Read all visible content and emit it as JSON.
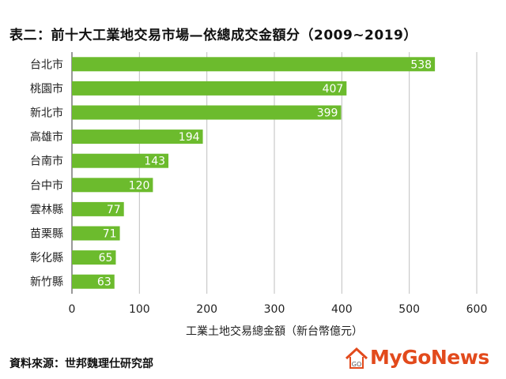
{
  "chart_data": {
    "type": "bar",
    "orientation": "horizontal",
    "title": "表二：前十大工業地交易市場—依總成交金額分（2009~2019）",
    "xlabel": "工業土地交易總金額（新台幣億元）",
    "ylabel": "",
    "categories": [
      "台北市",
      "桃園市",
      "新北市",
      "高雄市",
      "台南市",
      "台中市",
      "雲林縣",
      "苗栗縣",
      "彰化縣",
      "新竹縣"
    ],
    "values": [
      538,
      407,
      399,
      194,
      143,
      120,
      77,
      71,
      65,
      63
    ],
    "xlim": [
      0,
      600
    ],
    "xticks": [
      "0",
      "100",
      "200",
      "300",
      "400",
      "500",
      "600"
    ],
    "grid": "vertical",
    "legend": "none",
    "bar_color": "#6cbb2d",
    "value_label_color": "#ffffff"
  },
  "footer": {
    "source": "資料來源：世邦魏理仕研究部",
    "logo_text": "MyGoNews",
    "logo_mark_text": "GO"
  },
  "colors": {
    "logo_accent": "#e24a1c",
    "grid": "#bfbfbf",
    "axis": "#333333"
  }
}
